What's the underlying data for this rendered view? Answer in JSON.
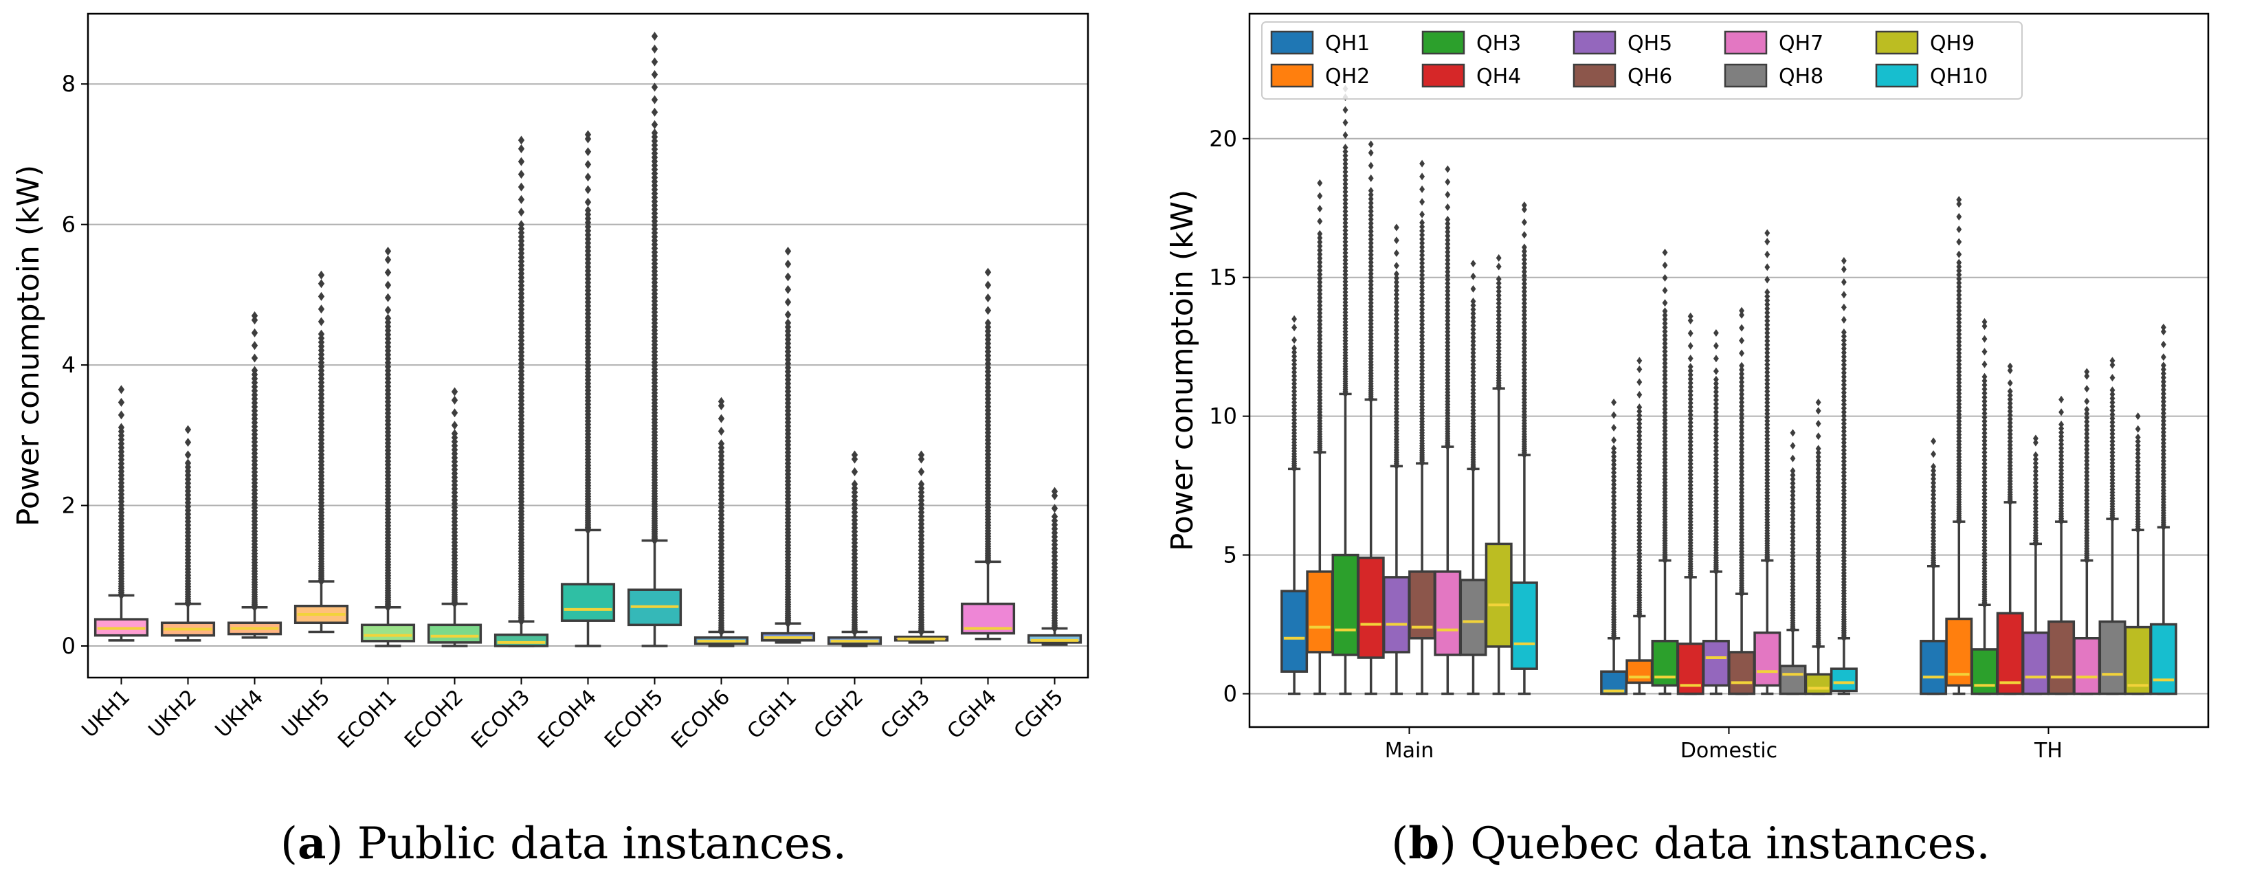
{
  "captions": {
    "a_letter": "a",
    "a_text": ") Public data instances.",
    "b_letter": "b",
    "b_text": ") Quebec data instances."
  },
  "chart_data": [
    {
      "type": "box",
      "ylabel": "Power conumptoin (kW)",
      "xlabel": "",
      "ylim": [
        -0.45,
        9.0
      ],
      "yticks": [
        0,
        2,
        4,
        6,
        8
      ],
      "grid": "horizontal",
      "categories": [
        "UKH1",
        "UKH2",
        "UKH4",
        "UKH5",
        "ECOH1",
        "ECOH2",
        "ECOH3",
        "ECOH4",
        "ECOH5",
        "ECOH6",
        "CGH1",
        "CGH2",
        "CGH3",
        "CGH4",
        "CGH5"
      ],
      "colors": [
        "#ff9ed2",
        "#ffb482",
        "#ffb482",
        "#ffc07a",
        "#9be28a",
        "#7bd98a",
        "#4dc19a",
        "#2fbfa4",
        "#35b8b8",
        "#5ea4d6",
        "#6f8ee0",
        "#7aa0e0",
        "#d48fd6",
        "#ee86d6",
        "#7fbfe0"
      ],
      "boxes": [
        {
          "min": 0.08,
          "q1": 0.15,
          "median": 0.25,
          "q3": 0.38,
          "max": 0.72,
          "flier_max": 3.65
        },
        {
          "min": 0.08,
          "q1": 0.15,
          "median": 0.24,
          "q3": 0.33,
          "max": 0.6,
          "flier_max": 3.08
        },
        {
          "min": 0.12,
          "q1": 0.17,
          "median": 0.25,
          "q3": 0.33,
          "max": 0.55,
          "flier_max": 4.7
        },
        {
          "min": 0.2,
          "q1": 0.33,
          "median": 0.45,
          "q3": 0.57,
          "max": 0.92,
          "flier_max": 5.28
        },
        {
          "min": 0.0,
          "q1": 0.07,
          "median": 0.15,
          "q3": 0.3,
          "max": 0.55,
          "flier_max": 5.62
        },
        {
          "min": 0.0,
          "q1": 0.05,
          "median": 0.14,
          "q3": 0.3,
          "max": 0.6,
          "flier_max": 3.62
        },
        {
          "min": 0.0,
          "q1": 0.0,
          "median": 0.05,
          "q3": 0.16,
          "max": 0.35,
          "flier_max": 7.2
        },
        {
          "min": 0.0,
          "q1": 0.36,
          "median": 0.52,
          "q3": 0.88,
          "max": 1.65,
          "flier_max": 7.28
        },
        {
          "min": 0.0,
          "q1": 0.3,
          "median": 0.56,
          "q3": 0.8,
          "max": 1.5,
          "flier_max": 8.68
        },
        {
          "min": 0.0,
          "q1": 0.03,
          "median": 0.07,
          "q3": 0.12,
          "max": 0.2,
          "flier_max": 3.48
        },
        {
          "min": 0.05,
          "q1": 0.08,
          "median": 0.12,
          "q3": 0.18,
          "max": 0.32,
          "flier_max": 5.62
        },
        {
          "min": 0.0,
          "q1": 0.03,
          "median": 0.07,
          "q3": 0.12,
          "max": 0.2,
          "flier_max": 2.72
        },
        {
          "min": 0.05,
          "q1": 0.08,
          "median": 0.1,
          "q3": 0.13,
          "max": 0.2,
          "flier_max": 2.72
        },
        {
          "min": 0.1,
          "q1": 0.18,
          "median": 0.25,
          "q3": 0.6,
          "max": 1.2,
          "flier_max": 5.32
        },
        {
          "min": 0.02,
          "q1": 0.05,
          "median": 0.08,
          "q3": 0.15,
          "max": 0.25,
          "flier_max": 2.2
        }
      ]
    },
    {
      "type": "box",
      "ylabel": "Power conumptoin (kW)",
      "xlabel": "",
      "ylim": [
        -1.2,
        24.5
      ],
      "yticks": [
        0,
        5,
        10,
        15,
        20
      ],
      "grid": "horizontal",
      "legend_position": "top-left",
      "categories": [
        "Main",
        "Domestic",
        "TH"
      ],
      "series": [
        {
          "name": "QH1",
          "color": "#1f77b4"
        },
        {
          "name": "QH2",
          "color": "#ff7f0e"
        },
        {
          "name": "QH3",
          "color": "#2ca02c"
        },
        {
          "name": "QH4",
          "color": "#d62728"
        },
        {
          "name": "QH5",
          "color": "#9467bd"
        },
        {
          "name": "QH6",
          "color": "#8c564b"
        },
        {
          "name": "QH7",
          "color": "#e377c2"
        },
        {
          "name": "QH8",
          "color": "#7f7f7f"
        },
        {
          "name": "QH9",
          "color": "#bcbd22"
        },
        {
          "name": "QH10",
          "color": "#17becf"
        }
      ],
      "boxes": [
        [
          {
            "min": 0.0,
            "q1": 0.8,
            "median": 2.0,
            "q3": 3.7,
            "max": 8.1,
            "flier_max": 13.5
          },
          {
            "min": 0.0,
            "q1": 1.5,
            "median": 2.4,
            "q3": 4.4,
            "max": 8.7,
            "flier_max": 18.4
          },
          {
            "min": 0.0,
            "q1": 1.4,
            "median": 2.3,
            "q3": 5.0,
            "max": 10.8,
            "flier_max": 21.8
          },
          {
            "min": 0.0,
            "q1": 1.3,
            "median": 2.5,
            "q3": 4.9,
            "max": 10.6,
            "flier_max": 19.8
          },
          {
            "min": 0.0,
            "q1": 1.5,
            "median": 2.5,
            "q3": 4.2,
            "max": 8.2,
            "flier_max": 16.8
          },
          {
            "min": 0.0,
            "q1": 2.0,
            "median": 2.4,
            "q3": 4.4,
            "max": 8.3,
            "flier_max": 19.1
          },
          {
            "min": 0.0,
            "q1": 1.4,
            "median": 2.3,
            "q3": 4.4,
            "max": 8.9,
            "flier_max": 18.9
          },
          {
            "min": 0.0,
            "q1": 1.4,
            "median": 2.6,
            "q3": 4.1,
            "max": 8.1,
            "flier_max": 15.5
          },
          {
            "min": 0.0,
            "q1": 1.7,
            "median": 3.2,
            "q3": 5.4,
            "max": 11.0,
            "flier_max": 15.7
          },
          {
            "min": 0.0,
            "q1": 0.9,
            "median": 1.8,
            "q3": 4.0,
            "max": 8.6,
            "flier_max": 17.6
          }
        ],
        [
          {
            "min": 0.0,
            "q1": 0.0,
            "median": 0.1,
            "q3": 0.8,
            "max": 2.0,
            "flier_max": 10.5
          },
          {
            "min": 0.0,
            "q1": 0.4,
            "median": 0.6,
            "q3": 1.2,
            "max": 2.8,
            "flier_max": 12.0
          },
          {
            "min": 0.0,
            "q1": 0.3,
            "median": 0.6,
            "q3": 1.9,
            "max": 4.8,
            "flier_max": 15.9
          },
          {
            "min": 0.0,
            "q1": 0.0,
            "median": 0.3,
            "q3": 1.8,
            "max": 4.2,
            "flier_max": 13.6
          },
          {
            "min": 0.0,
            "q1": 0.3,
            "median": 1.3,
            "q3": 1.9,
            "max": 4.4,
            "flier_max": 13.0
          },
          {
            "min": 0.0,
            "q1": 0.0,
            "median": 0.4,
            "q3": 1.5,
            "max": 3.6,
            "flier_max": 13.8
          },
          {
            "min": 0.0,
            "q1": 0.3,
            "median": 0.8,
            "q3": 2.2,
            "max": 4.8,
            "flier_max": 16.6
          },
          {
            "min": 0.0,
            "q1": 0.0,
            "median": 0.7,
            "q3": 1.0,
            "max": 2.3,
            "flier_max": 9.4
          },
          {
            "min": 0.0,
            "q1": 0.0,
            "median": 0.2,
            "q3": 0.7,
            "max": 1.7,
            "flier_max": 10.5
          },
          {
            "min": 0.0,
            "q1": 0.1,
            "median": 0.4,
            "q3": 0.9,
            "max": 2.0,
            "flier_max": 15.6
          }
        ],
        [
          {
            "min": 0.0,
            "q1": 0.0,
            "median": 0.6,
            "q3": 1.9,
            "max": 4.6,
            "flier_max": 9.1
          },
          {
            "min": 0.0,
            "q1": 0.3,
            "median": 0.7,
            "q3": 2.7,
            "max": 6.2,
            "flier_max": 17.8
          },
          {
            "min": 0.0,
            "q1": 0.0,
            "median": 0.3,
            "q3": 1.6,
            "max": 3.2,
            "flier_max": 13.4
          },
          {
            "min": 0.0,
            "q1": 0.0,
            "median": 0.4,
            "q3": 2.9,
            "max": 6.9,
            "flier_max": 11.8
          },
          {
            "min": 0.0,
            "q1": 0.0,
            "median": 0.6,
            "q3": 2.2,
            "max": 5.4,
            "flier_max": 9.2
          },
          {
            "min": 0.0,
            "q1": 0.0,
            "median": 0.6,
            "q3": 2.6,
            "max": 6.2,
            "flier_max": 10.6
          },
          {
            "min": 0.0,
            "q1": 0.0,
            "median": 0.6,
            "q3": 2.0,
            "max": 4.8,
            "flier_max": 11.6
          },
          {
            "min": 0.0,
            "q1": 0.0,
            "median": 0.7,
            "q3": 2.6,
            "max": 6.3,
            "flier_max": 12.0
          },
          {
            "min": 0.0,
            "q1": 0.0,
            "median": 0.3,
            "q3": 2.4,
            "max": 5.9,
            "flier_max": 10.0
          },
          {
            "min": 0.0,
            "q1": 0.0,
            "median": 0.5,
            "q3": 2.5,
            "max": 6.0,
            "flier_max": 13.2
          }
        ]
      ]
    }
  ]
}
